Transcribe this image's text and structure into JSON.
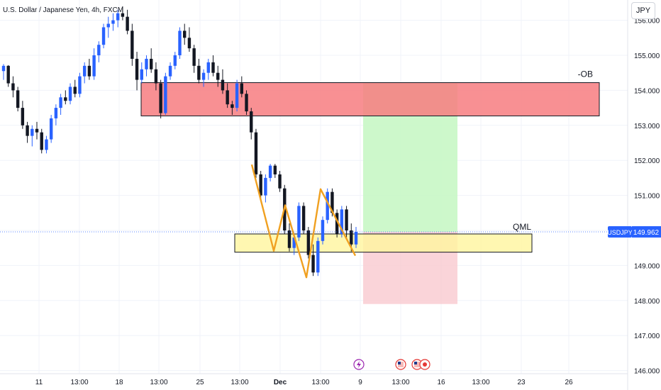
{
  "header": {
    "title": "U.S. Dollar / Japanese Yen, 4h, FXCM",
    "currency_button": "JPY"
  },
  "chart_data": {
    "type": "candlestick",
    "symbol": "USDJPY",
    "timeframe": "4h",
    "last_price": "149.962",
    "symbol_badge": "USDJPY",
    "y_ticks": [
      "156.000",
      "155.000",
      "154.000",
      "153.000",
      "152.000",
      "151.000",
      "150.000",
      "149.000",
      "148.000",
      "147.000",
      "146.000"
    ],
    "y_tick_values": [
      156,
      155,
      154,
      153,
      152,
      151,
      150,
      149,
      148,
      147,
      146
    ],
    "ylim": [
      145.9,
      156.5
    ],
    "x_ticks": [
      "11",
      "13:00",
      "18",
      "13:00",
      "25",
      "13:00",
      "Dec",
      "13:00",
      "9",
      "13:00",
      "16",
      "13:00",
      "23",
      "26"
    ],
    "grid": true,
    "colors": {
      "up": "#2962ff",
      "down": "#131722",
      "ob_zone": "#f77c80",
      "qml_zone": "#fff59d",
      "profit": "#c8f7c5",
      "loss": "#f9c9cf",
      "pattern": "#f0a020",
      "badge": "#2962ff"
    },
    "zones": [
      {
        "label": "-OB",
        "top": 154.22,
        "bottom": 153.27
      },
      {
        "label": "QML",
        "top": 149.9,
        "bottom": 149.38
      }
    ],
    "position": {
      "entry": 149.96,
      "target": 154.22,
      "stop": 147.9
    },
    "pattern_points": [
      151.88,
      149.42,
      150.72,
      148.66,
      151.18,
      149.28
    ],
    "candles": [
      [
        154.55,
        154.75,
        154.3,
        154.7
      ],
      [
        154.7,
        154.72,
        154.1,
        154.2
      ],
      [
        154.2,
        154.4,
        153.8,
        154.0
      ],
      [
        154.0,
        154.1,
        153.4,
        153.5
      ],
      [
        153.5,
        153.7,
        152.9,
        153.0
      ],
      [
        153.0,
        153.1,
        152.5,
        152.7
      ],
      [
        152.7,
        153.0,
        152.4,
        152.9
      ],
      [
        152.9,
        153.1,
        152.6,
        152.8
      ],
      [
        152.8,
        152.9,
        152.2,
        152.3
      ],
      [
        152.3,
        152.7,
        152.2,
        152.6
      ],
      [
        152.6,
        153.3,
        152.5,
        153.2
      ],
      [
        153.2,
        153.6,
        153.0,
        153.5
      ],
      [
        153.5,
        153.9,
        153.3,
        153.8
      ],
      [
        153.8,
        154.0,
        153.6,
        153.7
      ],
      [
        153.7,
        154.2,
        153.6,
        154.1
      ],
      [
        154.1,
        154.3,
        153.8,
        153.9
      ],
      [
        153.9,
        154.5,
        153.8,
        154.4
      ],
      [
        154.4,
        154.8,
        154.2,
        154.7
      ],
      [
        154.7,
        154.9,
        154.3,
        154.4
      ],
      [
        154.4,
        155.2,
        154.3,
        155.0
      ],
      [
        155.0,
        155.4,
        154.8,
        155.3
      ],
      [
        155.3,
        155.9,
        155.2,
        155.8
      ],
      [
        155.8,
        156.1,
        155.5,
        155.9
      ],
      [
        155.9,
        156.2,
        155.7,
        156.0
      ],
      [
        156.0,
        156.3,
        155.8,
        156.2
      ],
      [
        156.2,
        156.4,
        156.0,
        156.1
      ],
      [
        156.1,
        156.3,
        155.6,
        155.7
      ],
      [
        155.7,
        155.9,
        154.7,
        154.9
      ],
      [
        154.9,
        155.1,
        154.0,
        154.3
      ],
      [
        154.3,
        154.8,
        154.2,
        154.6
      ],
      [
        154.6,
        155.0,
        154.4,
        154.9
      ],
      [
        154.9,
        155.2,
        154.5,
        154.6
      ],
      [
        154.6,
        154.8,
        154.0,
        154.2
      ],
      [
        154.2,
        154.3,
        153.2,
        153.35
      ],
      [
        153.35,
        154.5,
        153.3,
        154.4
      ],
      [
        154.4,
        154.8,
        154.3,
        154.7
      ],
      [
        154.7,
        155.1,
        154.6,
        155.0
      ],
      [
        155.0,
        155.8,
        154.9,
        155.7
      ],
      [
        155.7,
        155.9,
        155.3,
        155.5
      ],
      [
        155.5,
        155.8,
        155.1,
        155.2
      ],
      [
        155.2,
        155.3,
        154.5,
        154.7
      ],
      [
        154.7,
        154.9,
        154.2,
        154.3
      ],
      [
        154.3,
        154.6,
        154.1,
        154.5
      ],
      [
        154.5,
        154.9,
        154.3,
        154.8
      ],
      [
        154.8,
        155.0,
        154.4,
        154.5
      ],
      [
        154.5,
        154.7,
        154.1,
        154.3
      ],
      [
        154.3,
        154.6,
        153.9,
        154.0
      ],
      [
        154.0,
        154.2,
        153.5,
        153.6
      ],
      [
        153.6,
        153.7,
        153.3,
        153.5
      ],
      [
        153.5,
        154.3,
        153.4,
        154.2
      ],
      [
        154.2,
        154.4,
        153.8,
        153.9
      ],
      [
        153.9,
        154.0,
        153.3,
        153.4
      ],
      [
        153.4,
        153.5,
        152.6,
        152.8
      ],
      [
        152.8,
        152.9,
        151.5,
        151.6
      ],
      [
        151.6,
        151.7,
        150.9,
        151.0
      ],
      [
        151.0,
        151.6,
        150.8,
        151.5
      ],
      [
        151.5,
        151.9,
        151.4,
        151.85
      ],
      [
        151.85,
        151.9,
        151.5,
        151.6
      ],
      [
        151.6,
        151.7,
        151.1,
        151.2
      ],
      [
        151.2,
        151.3,
        149.9,
        150.0
      ],
      [
        150.0,
        150.2,
        149.4,
        149.5
      ],
      [
        149.5,
        149.9,
        149.3,
        149.8
      ],
      [
        149.8,
        150.8,
        149.7,
        150.7
      ],
      [
        150.7,
        150.8,
        149.9,
        150.0
      ],
      [
        150.0,
        150.1,
        149.2,
        149.3
      ],
      [
        149.3,
        149.6,
        148.7,
        148.8
      ],
      [
        148.8,
        149.8,
        148.7,
        149.7
      ],
      [
        149.7,
        150.4,
        149.6,
        150.3
      ],
      [
        150.3,
        151.2,
        150.2,
        151.1
      ],
      [
        151.1,
        151.2,
        150.4,
        150.5
      ],
      [
        150.5,
        150.6,
        149.8,
        149.9
      ],
      [
        149.9,
        150.7,
        149.8,
        150.6
      ],
      [
        150.6,
        150.7,
        149.8,
        150.0
      ],
      [
        150.0,
        150.2,
        149.4,
        149.6
      ],
      [
        149.6,
        150.1,
        149.5,
        149.96
      ]
    ]
  }
}
